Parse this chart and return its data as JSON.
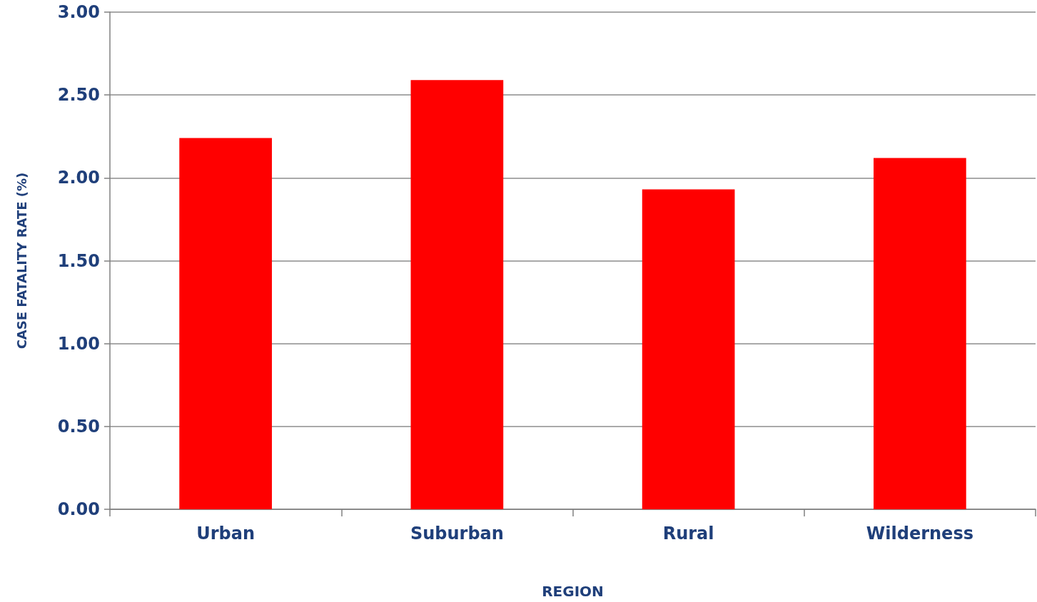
{
  "chart_data": {
    "type": "bar",
    "xlabel": "REGION",
    "ylabel": "CASE FATALITY RATE (%)",
    "categories": [
      "Urban",
      "Suburban",
      "Rural",
      "Wilderness"
    ],
    "values": [
      2.24,
      2.59,
      1.93,
      2.12
    ],
    "color": "#ff0000",
    "ylim": [
      0,
      3
    ],
    "yticks": [
      {
        "value": 0,
        "label": "0.00"
      },
      {
        "value": 0.5,
        "label": "0.50"
      },
      {
        "value": 1,
        "label": "1.00"
      },
      {
        "value": 1.5,
        "label": "1.50"
      },
      {
        "value": 2,
        "label": "2.00"
      },
      {
        "value": 2.5,
        "label": "2.50"
      },
      {
        "value": 3,
        "label": "3.00"
      }
    ],
    "grid": "y"
  }
}
